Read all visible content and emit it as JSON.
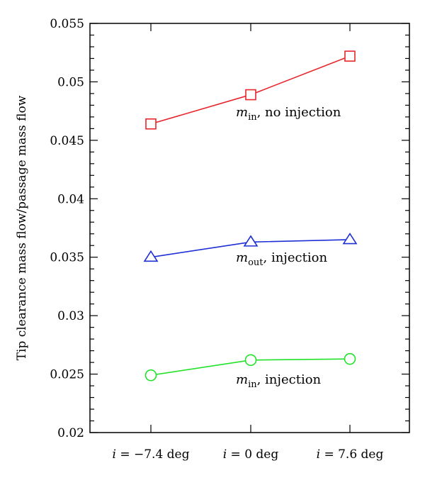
{
  "chart_data": {
    "type": "line",
    "ylabel": "Tip clearance mass flow/passage mass flow",
    "xlabel": "",
    "ylim": [
      0.02,
      0.055
    ],
    "y_ticks": [
      0.02,
      0.025,
      0.03,
      0.035,
      0.04,
      0.045,
      0.05,
      0.055
    ],
    "y_tick_labels": [
      "0.02",
      "0.025",
      "0.03",
      "0.035",
      "0.04",
      "0.045",
      "0.05",
      "0.055"
    ],
    "x_categories": [
      {
        "var": "i",
        "text": " = −7.4 deg"
      },
      {
        "var": "i",
        "text": " = 0 deg"
      },
      {
        "var": "i",
        "text": " = 7.6 deg"
      }
    ],
    "grid": false,
    "series": [
      {
        "name": "m_in, no injection",
        "label_var": "m",
        "label_sub": "in",
        "label_rest": ", no injection",
        "color": "#e8262c",
        "marker": "square",
        "values": [
          0.0464,
          0.0489,
          0.0522
        ]
      },
      {
        "name": "m_out, injection",
        "label_var": "m",
        "label_sub": "out",
        "label_rest": ", injection",
        "color": "#1f2fd6",
        "marker": "triangle",
        "values": [
          0.035,
          0.0363,
          0.0365
        ]
      },
      {
        "name": "m_in, injection",
        "label_var": "m",
        "label_sub": "in",
        "label_rest": ", injection",
        "color": "#22e22a",
        "marker": "circle",
        "values": [
          0.0249,
          0.0262,
          0.0263
        ]
      }
    ]
  }
}
